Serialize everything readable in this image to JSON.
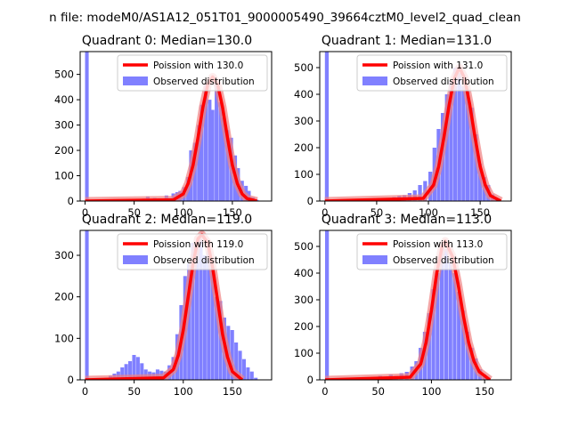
{
  "figure": {
    "suptitle": "n file: modeM0/AS1A12_051T01_9000005490_39664cztM0_level2_quad_clean"
  },
  "colors": {
    "poisson": "#ff0000",
    "poisson_glow": "#f08080",
    "observed": "#8080ff"
  },
  "chart_data": [
    {
      "type": "bar",
      "title": "Quadrant 0: Median=130.0",
      "xlim": [
        -5,
        190
      ],
      "ylim": [
        0,
        590
      ],
      "xticks": [
        0,
        50,
        100,
        150
      ],
      "yticks": [
        0,
        100,
        200,
        300,
        400,
        500
      ],
      "bin_width": 3.7,
      "bins_x": [
        0,
        55,
        58,
        62,
        66,
        69,
        73,
        77,
        81,
        84,
        88,
        92,
        95,
        99,
        103,
        106,
        110,
        114,
        117,
        121,
        125,
        128,
        132,
        136,
        139,
        143,
        147,
        151,
        154,
        158,
        162,
        165,
        169,
        173
      ],
      "bins_y": [
        590,
        5,
        10,
        18,
        8,
        12,
        10,
        8,
        22,
        12,
        30,
        35,
        40,
        55,
        95,
        200,
        230,
        300,
        380,
        460,
        400,
        360,
        470,
        390,
        330,
        280,
        250,
        180,
        130,
        80,
        60,
        40,
        15,
        5
      ],
      "poisson_x": [
        0,
        90,
        100,
        105,
        110,
        115,
        120,
        125,
        130,
        135,
        140,
        145,
        150,
        155,
        160,
        165,
        175
      ],
      "poisson_y": [
        0,
        5,
        28,
        70,
        142,
        250,
        370,
        460,
        490,
        460,
        370,
        250,
        142,
        70,
        28,
        10,
        0
      ],
      "legend": {
        "placement": "top-right",
        "poisson_label": "Poission with 130.0",
        "observed_label": "Observed distribution"
      }
    },
    {
      "type": "bar",
      "title": "Quadrant 1: Median=131.0",
      "xlim": [
        -5,
        180
      ],
      "ylim": [
        0,
        560
      ],
      "xticks": [
        0,
        50,
        100,
        150
      ],
      "yticks": [
        0,
        100,
        200,
        300,
        400,
        500
      ],
      "bin_width": 3.7,
      "bins_x": [
        0,
        55,
        60,
        65,
        70,
        75,
        80,
        85,
        90,
        95,
        100,
        104,
        108,
        112,
        116,
        120,
        124,
        128,
        132,
        136,
        140,
        144,
        148,
        152,
        156,
        160,
        164
      ],
      "bins_y": [
        560,
        5,
        8,
        15,
        20,
        22,
        30,
        40,
        60,
        75,
        110,
        200,
        270,
        330,
        400,
        450,
        500,
        480,
        430,
        420,
        350,
        250,
        140,
        90,
        60,
        25,
        10
      ],
      "poisson_x": [
        0,
        95,
        105,
        110,
        115,
        120,
        125,
        130,
        135,
        140,
        145,
        150,
        155,
        160,
        170
      ],
      "poisson_y": [
        0,
        10,
        60,
        130,
        240,
        360,
        460,
        500,
        460,
        360,
        240,
        130,
        60,
        20,
        0
      ],
      "legend": {
        "placement": "top-right",
        "poisson_label": "Poission with 131.0",
        "observed_label": "Observed distribution"
      }
    },
    {
      "type": "bar",
      "title": "Quadrant 2: Median=119.0",
      "xlim": [
        -5,
        190
      ],
      "ylim": [
        0,
        360
      ],
      "xticks": [
        0,
        50,
        100,
        150
      ],
      "yticks": [
        0,
        100,
        200,
        300
      ],
      "bin_width": 3.7,
      "bins_x": [
        0,
        20,
        24,
        28,
        32,
        36,
        40,
        44,
        48,
        52,
        56,
        60,
        64,
        68,
        72,
        76,
        80,
        84,
        88,
        92,
        96,
        100,
        104,
        108,
        112,
        116,
        120,
        124,
        128,
        132,
        136,
        140,
        144,
        148,
        152,
        156,
        160,
        164,
        168,
        172
      ],
      "bins_y": [
        360,
        5,
        10,
        15,
        20,
        30,
        38,
        45,
        60,
        55,
        40,
        25,
        20,
        18,
        25,
        22,
        20,
        35,
        55,
        110,
        180,
        250,
        280,
        330,
        320,
        340,
        300,
        310,
        270,
        200,
        190,
        150,
        130,
        120,
        90,
        70,
        50,
        30,
        20,
        5
      ],
      "poisson_x": [
        0,
        80,
        90,
        95,
        100,
        105,
        110,
        115,
        119,
        125,
        130,
        135,
        140,
        145,
        150,
        160
      ],
      "poisson_y": [
        0,
        5,
        25,
        60,
        120,
        200,
        280,
        340,
        350,
        330,
        270,
        190,
        110,
        55,
        20,
        0
      ],
      "legend": {
        "placement": "top-right",
        "poisson_label": "Poission with 119.0",
        "observed_label": "Observed distribution"
      }
    },
    {
      "type": "bar",
      "title": "Quadrant 3: Median=113.0",
      "xlim": [
        -5,
        175
      ],
      "ylim": [
        0,
        560
      ],
      "xticks": [
        0,
        50,
        100,
        150
      ],
      "yticks": [
        0,
        100,
        200,
        300,
        400,
        500
      ],
      "bin_width": 3.6,
      "bins_x": [
        0,
        45,
        50,
        55,
        60,
        65,
        70,
        75,
        80,
        84,
        88,
        92,
        96,
        100,
        104,
        108,
        112,
        116,
        120,
        124,
        128,
        132,
        136,
        140,
        144,
        148,
        152
      ],
      "bins_y": [
        560,
        5,
        15,
        10,
        20,
        15,
        25,
        30,
        50,
        70,
        120,
        180,
        250,
        340,
        400,
        500,
        490,
        440,
        400,
        330,
        260,
        180,
        120,
        80,
        40,
        20,
        5
      ],
      "poisson_x": [
        0,
        80,
        90,
        95,
        100,
        105,
        110,
        113,
        120,
        125,
        130,
        135,
        140,
        145,
        155
      ],
      "poisson_y": [
        0,
        10,
        60,
        140,
        260,
        400,
        500,
        520,
        460,
        360,
        240,
        140,
        70,
        30,
        0
      ],
      "legend": {
        "placement": "top-right",
        "poisson_label": "Poission with 113.0",
        "observed_label": "Observed distribution"
      }
    }
  ]
}
